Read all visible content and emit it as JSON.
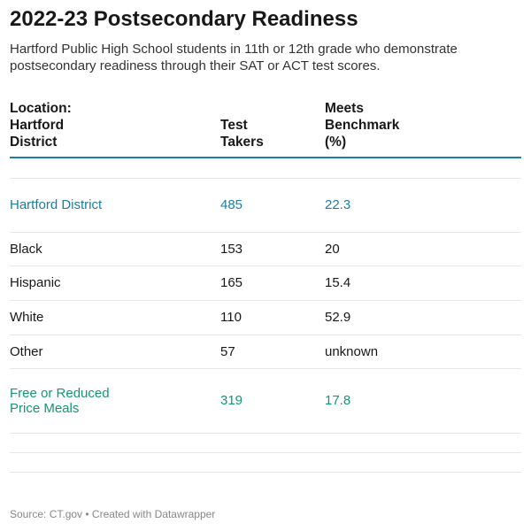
{
  "title": "2022-23 Postsecondary Readiness",
  "subtitle": "Hartford Public High School students in 11th or 12th grade who demonstrate postsecondary readiness through their SAT or ACT test scores.",
  "columns": [
    "Location: Hartford District",
    "Test Takers",
    "Meets Benchmark (%)"
  ],
  "colors": {
    "highlight_blue": "#1c7ea1",
    "highlight_green": "#129677"
  },
  "rows": [
    {
      "location": "Hartford District",
      "test_takers": "485",
      "meets_benchmark": "22.3",
      "color": "#1c7ea1"
    },
    {
      "location": "Black",
      "test_takers": "153",
      "meets_benchmark": "20"
    },
    {
      "location": "Hispanic",
      "test_takers": "165",
      "meets_benchmark": "15.4"
    },
    {
      "location": "White",
      "test_takers": "110",
      "meets_benchmark": "52.9"
    },
    {
      "location": "Other",
      "test_takers": "57",
      "meets_benchmark": "unknown"
    },
    {
      "location": "Free or Reduced Price Meals",
      "test_takers": "319",
      "meets_benchmark": "17.8",
      "color": "#129677"
    }
  ],
  "footer": "Source: CT.gov • Created with Datawrapper"
}
